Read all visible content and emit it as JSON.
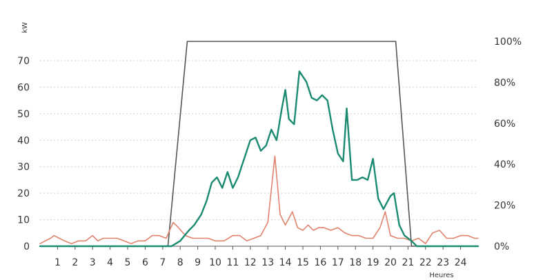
{
  "chart_data": {
    "type": "line",
    "ylabel": "kW",
    "xlabel": "Heures",
    "xlim": [
      0,
      25
    ],
    "ylim_left": [
      0,
      80
    ],
    "ylim_right": [
      0,
      100
    ],
    "y_left_ticks": [
      "0",
      "10",
      "20",
      "30",
      "40",
      "50",
      "60",
      "70"
    ],
    "y_right_ticks": [
      "0%",
      "20%",
      "40%",
      "60%",
      "80%",
      "100%"
    ],
    "x_ticks": [
      "1",
      "2",
      "3",
      "4",
      "5",
      "6",
      "7",
      "8",
      "9",
      "10",
      "11",
      "12",
      "13",
      "14",
      "15",
      "16",
      "17",
      "18",
      "19",
      "20",
      "21",
      "22",
      "23",
      "24"
    ],
    "grid": true,
    "colors": {
      "production": "#1a8a70",
      "consumption": "#e0826d",
      "percentage": "#555555"
    },
    "series": [
      {
        "key": "production",
        "axis": "left",
        "points": [
          [
            0,
            0
          ],
          [
            7.5,
            0
          ],
          [
            8,
            2
          ],
          [
            8.5,
            6
          ],
          [
            8.8,
            8
          ],
          [
            9.2,
            12
          ],
          [
            9.5,
            17
          ],
          [
            9.8,
            24
          ],
          [
            10.1,
            26
          ],
          [
            10.4,
            22
          ],
          [
            10.7,
            28
          ],
          [
            11,
            22
          ],
          [
            11.3,
            26
          ],
          [
            11.7,
            34
          ],
          [
            12,
            40
          ],
          [
            12.3,
            41
          ],
          [
            12.6,
            36
          ],
          [
            12.9,
            38
          ],
          [
            13.2,
            44
          ],
          [
            13.5,
            40
          ],
          [
            13.8,
            52
          ],
          [
            14,
            59
          ],
          [
            14.2,
            48
          ],
          [
            14.5,
            46
          ],
          [
            14.8,
            66
          ],
          [
            15.2,
            62
          ],
          [
            15.5,
            56
          ],
          [
            15.8,
            55
          ],
          [
            16.1,
            57
          ],
          [
            16.4,
            55
          ],
          [
            16.7,
            44
          ],
          [
            17,
            35
          ],
          [
            17.3,
            32
          ],
          [
            17.5,
            52
          ],
          [
            17.8,
            25
          ],
          [
            18.1,
            25
          ],
          [
            18.4,
            26
          ],
          [
            18.7,
            25
          ],
          [
            19,
            33
          ],
          [
            19.3,
            18
          ],
          [
            19.6,
            14
          ],
          [
            20,
            19
          ],
          [
            20.2,
            20
          ],
          [
            20.5,
            8
          ],
          [
            20.8,
            4
          ],
          [
            21.2,
            2
          ],
          [
            21.5,
            0
          ],
          [
            25,
            0
          ]
        ]
      },
      {
        "key": "consumption",
        "axis": "left",
        "points": [
          [
            0,
            1
          ],
          [
            0.3,
            2
          ],
          [
            0.6,
            3
          ],
          [
            0.8,
            4
          ],
          [
            1.1,
            3
          ],
          [
            1.4,
            2
          ],
          [
            1.8,
            1
          ],
          [
            2.2,
            2
          ],
          [
            2.6,
            2
          ],
          [
            3,
            4
          ],
          [
            3.3,
            2
          ],
          [
            3.6,
            3
          ],
          [
            4,
            3
          ],
          [
            4.4,
            3
          ],
          [
            4.8,
            2
          ],
          [
            5.2,
            1
          ],
          [
            5.6,
            2
          ],
          [
            6,
            2
          ],
          [
            6.4,
            4
          ],
          [
            6.8,
            4
          ],
          [
            7.2,
            3
          ],
          [
            7.6,
            9
          ],
          [
            7.9,
            7
          ],
          [
            8.3,
            4
          ],
          [
            8.7,
            3
          ],
          [
            9.2,
            3
          ],
          [
            9.6,
            3
          ],
          [
            10,
            2
          ],
          [
            10.5,
            2
          ],
          [
            11,
            4
          ],
          [
            11.4,
            4
          ],
          [
            11.8,
            2
          ],
          [
            12.2,
            3
          ],
          [
            12.6,
            4
          ],
          [
            13,
            9
          ],
          [
            13.4,
            34
          ],
          [
            13.7,
            12
          ],
          [
            14,
            8
          ],
          [
            14.4,
            13
          ],
          [
            14.7,
            7
          ],
          [
            15,
            6
          ],
          [
            15.3,
            8
          ],
          [
            15.6,
            6
          ],
          [
            15.9,
            7
          ],
          [
            16.2,
            7
          ],
          [
            16.6,
            6
          ],
          [
            17,
            7
          ],
          [
            17.4,
            5
          ],
          [
            17.8,
            4
          ],
          [
            18.2,
            4
          ],
          [
            18.6,
            3
          ],
          [
            19,
            3
          ],
          [
            19.4,
            7
          ],
          [
            19.7,
            13
          ],
          [
            20,
            4
          ],
          [
            20.4,
            3
          ],
          [
            20.8,
            3
          ],
          [
            21.2,
            2
          ],
          [
            21.6,
            3
          ],
          [
            22,
            1
          ],
          [
            22.4,
            5
          ],
          [
            22.8,
            6
          ],
          [
            23.2,
            3
          ],
          [
            23.6,
            3
          ],
          [
            24,
            4
          ],
          [
            24.4,
            4
          ],
          [
            24.8,
            3
          ],
          [
            25,
            3
          ]
        ]
      },
      {
        "key": "percentage",
        "axis": "right",
        "points": [
          [
            0,
            0
          ],
          [
            7.3,
            0
          ],
          [
            8.4,
            100
          ],
          [
            20.3,
            100
          ],
          [
            21.2,
            0
          ],
          [
            25,
            0
          ]
        ]
      }
    ]
  }
}
